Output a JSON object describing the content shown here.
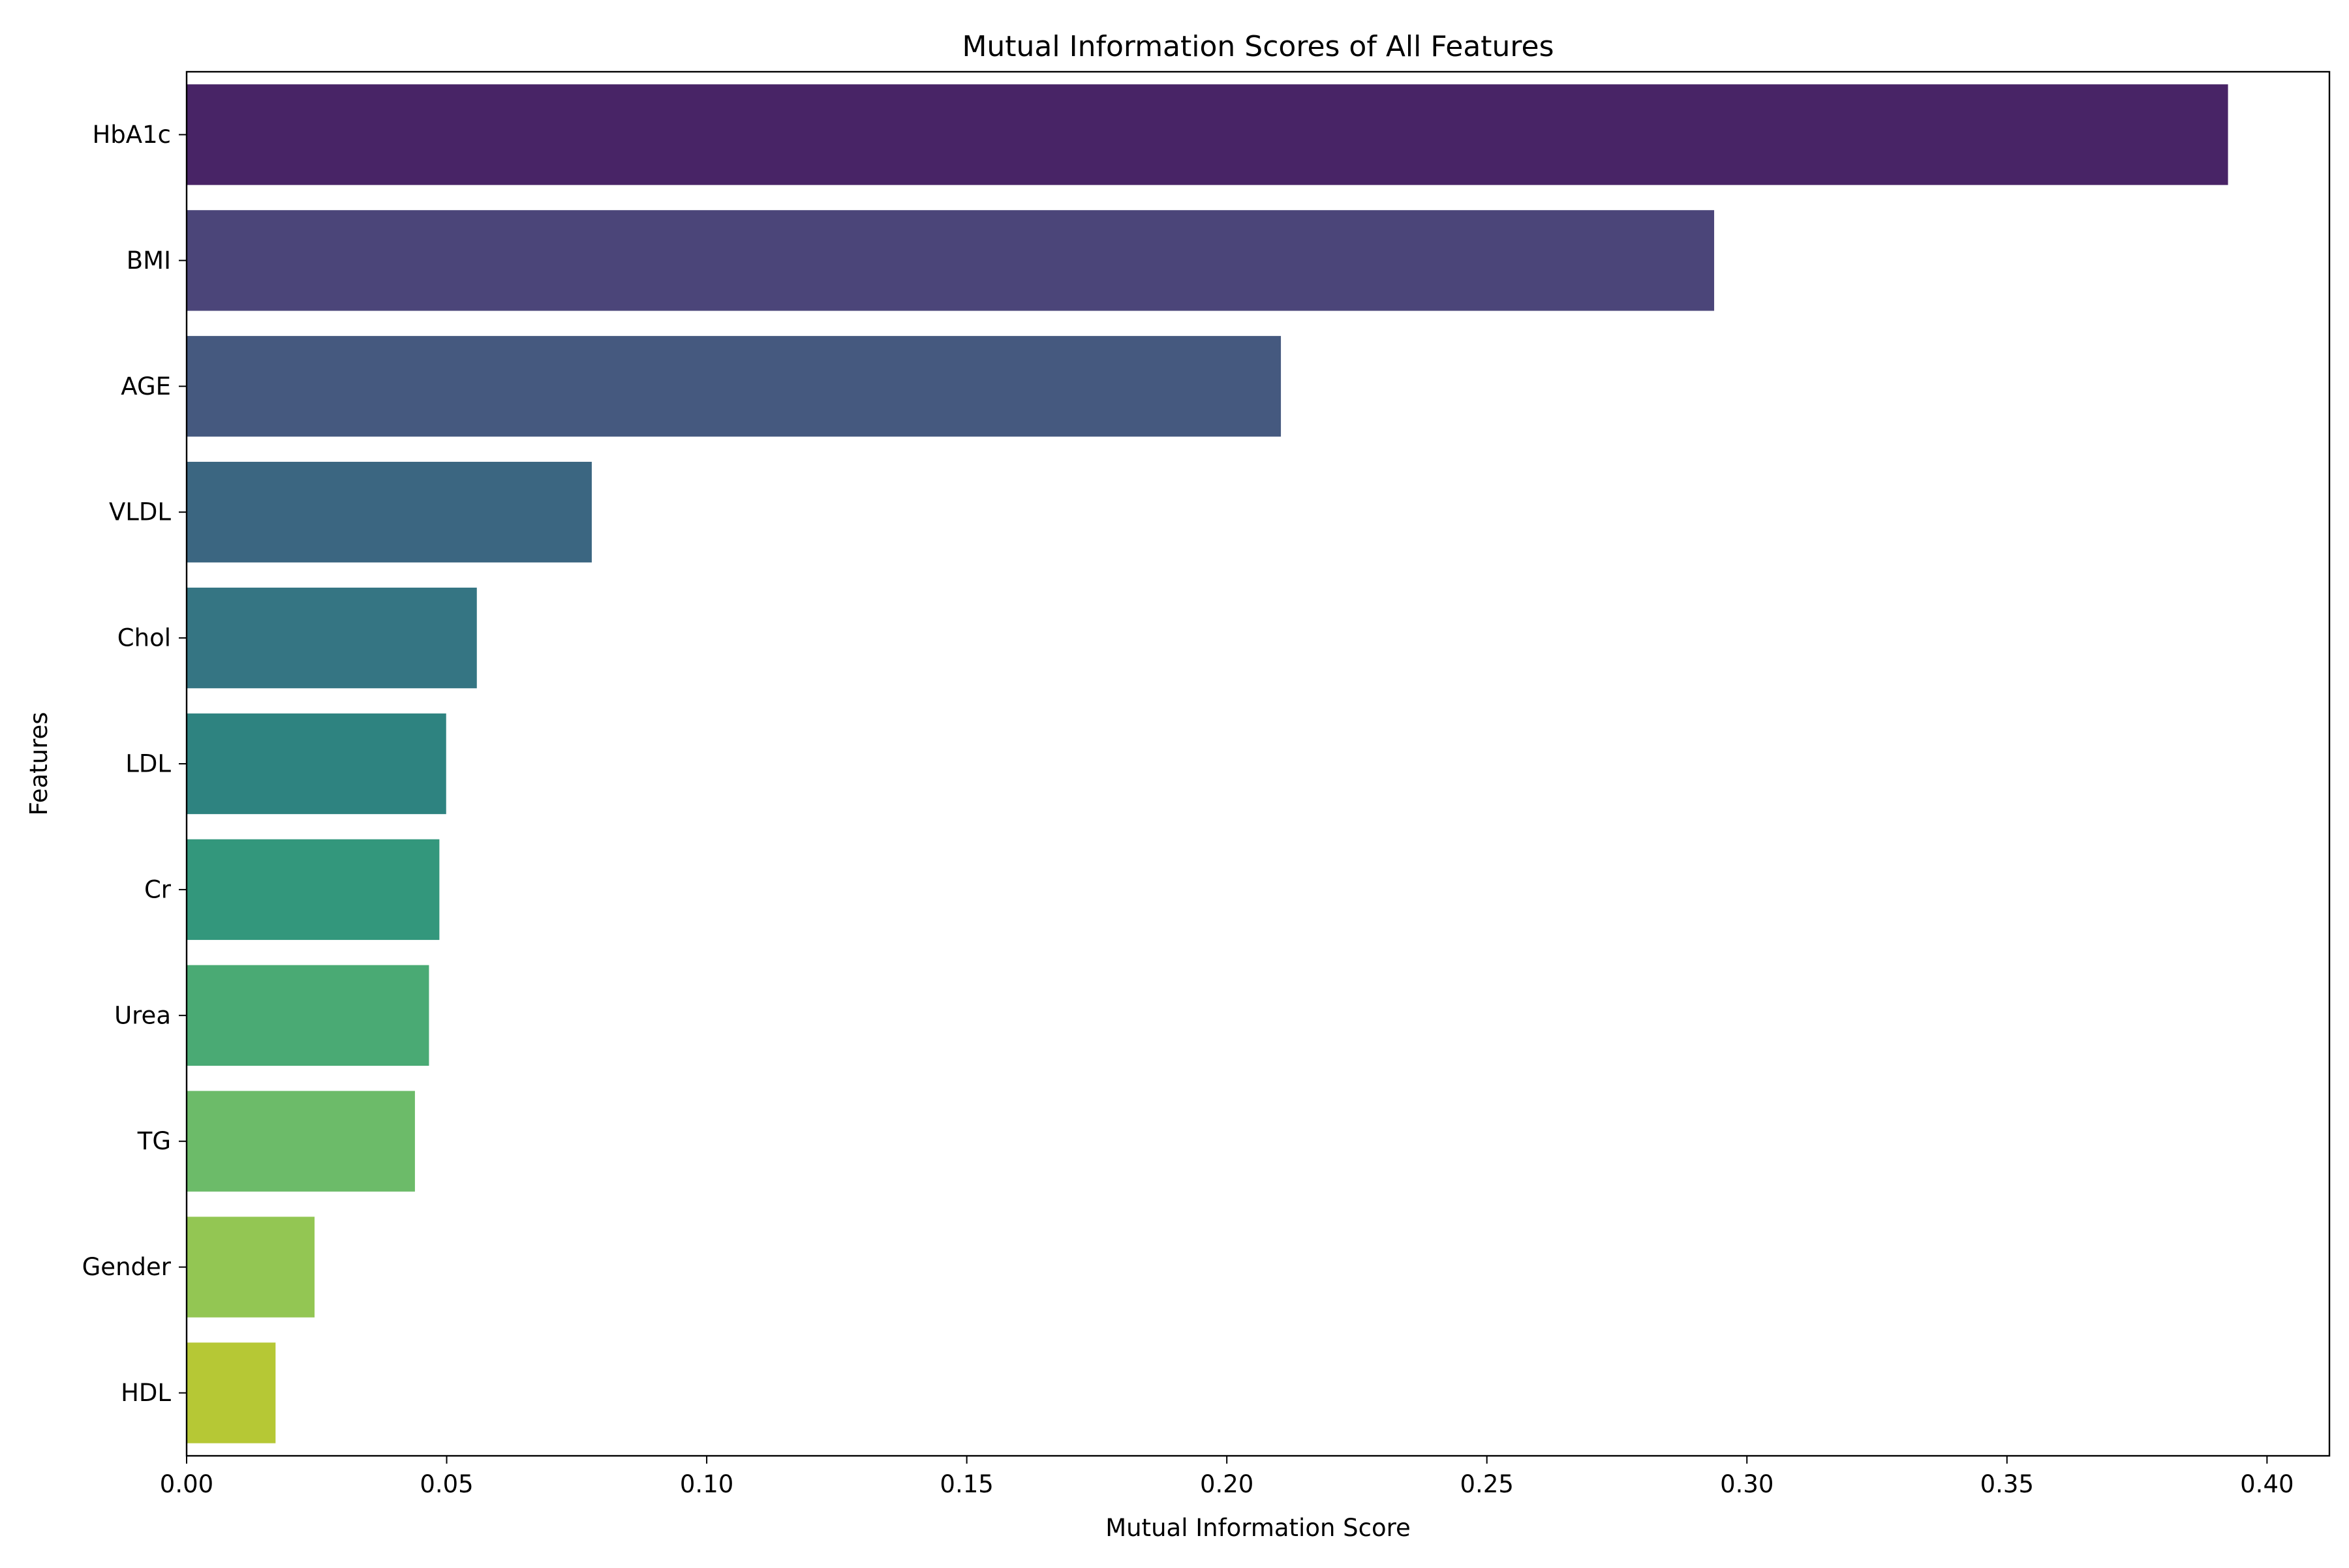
{
  "chart_data": {
    "type": "bar",
    "orientation": "horizontal",
    "title": "Mutual Information Scores of All Features",
    "xlabel": "Mutual Information Score",
    "ylabel": "Features",
    "xlim": [
      0,
      0.412
    ],
    "x_ticks": [
      "0.00",
      "0.05",
      "0.10",
      "0.15",
      "0.20",
      "0.25",
      "0.30",
      "0.35",
      "0.40"
    ],
    "x_tick_values": [
      0,
      0.05,
      0.1,
      0.15,
      0.2,
      0.25,
      0.3,
      0.35,
      0.4
    ],
    "grid": false,
    "categories": [
      "HbA1c",
      "BMI",
      "AGE",
      "VLDL",
      "Chol",
      "LDL",
      "Cr",
      "Urea",
      "TG",
      "Gender",
      "HDL"
    ],
    "values": [
      0.3925,
      0.2937,
      0.2104,
      0.0779,
      0.0558,
      0.0499,
      0.0486,
      0.0466,
      0.0439,
      0.0246,
      0.0171
    ],
    "colors": [
      "#482466",
      "#4b4579",
      "#45597f",
      "#3b6681",
      "#357583",
      "#2e8380",
      "#33977c",
      "#4aaa74",
      "#6cbb69",
      "#93c653",
      "#b6c835"
    ]
  }
}
